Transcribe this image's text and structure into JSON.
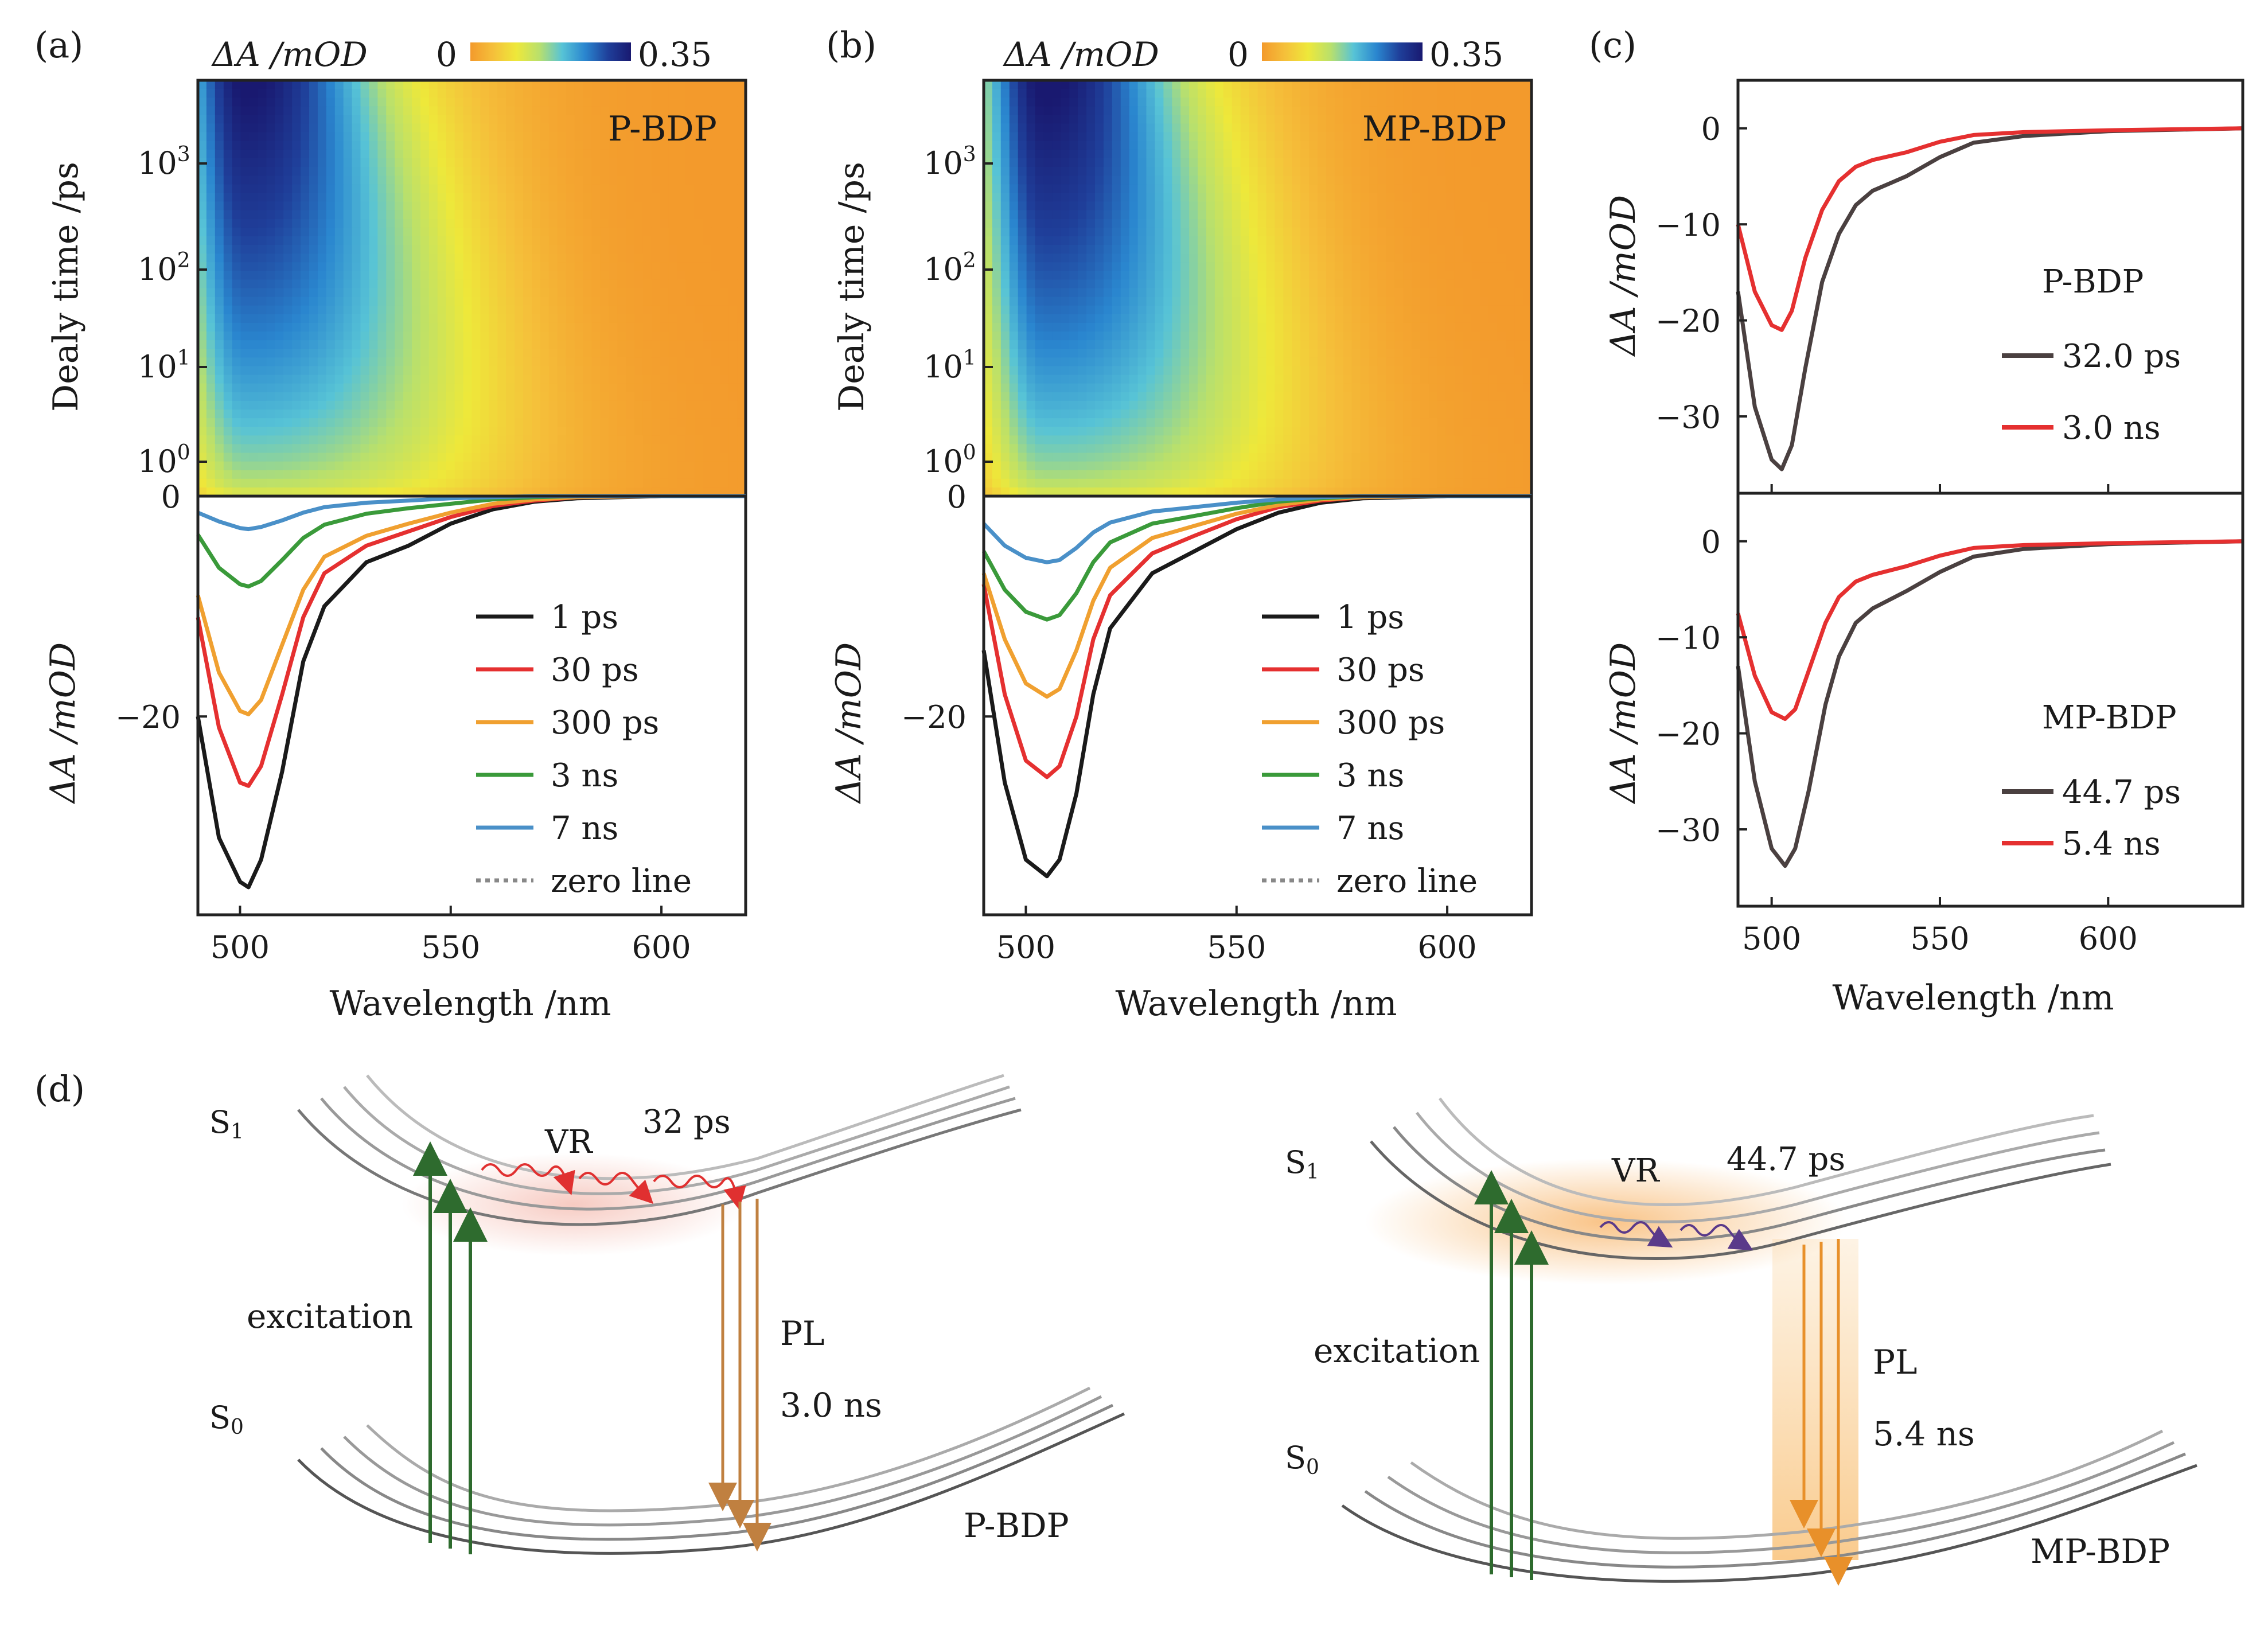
{
  "panels": {
    "a": "(a)",
    "b": "(b)",
    "c": "(c)",
    "d": "(d)"
  },
  "colorbar": {
    "label": "ΔA /mOD",
    "min": "0",
    "max": "0.35",
    "stops": [
      "#f39a2c",
      "#f5c03a",
      "#eee83a",
      "#b9e06c",
      "#57c3d6",
      "#2a86cf",
      "#1f3f9a",
      "#191970"
    ]
  },
  "maps": {
    "a": {
      "label": "P-BDP",
      "peak": 501,
      "width_nm": 14,
      "yticks": [
        "10",
        "10",
        "10",
        "10"
      ],
      "yexps": [
        "0",
        "1",
        "2",
        "3"
      ],
      "ylabel": "Dealy time /ps"
    },
    "b": {
      "label": "MP-BDP",
      "peak": 504,
      "width_nm": 14,
      "yticks": [
        "10",
        "10",
        "10",
        "10"
      ],
      "yexps": [
        "0",
        "1",
        "2",
        "3"
      ],
      "ylabel": "Dealy time /ps"
    }
  },
  "axes": {
    "xlabel": "Wavelength /nm",
    "ylabel_spectra": "ΔA /mOD",
    "xticks_ab": [
      "500",
      "550",
      "600"
    ],
    "yticks_ab": [
      "0",
      "−20"
    ],
    "xticks_c": [
      "500",
      "550",
      "600"
    ],
    "yticks_c": [
      "0",
      "−10",
      "−20",
      "−30"
    ]
  },
  "legend_ab": [
    "1 ps",
    "30 ps",
    "300 ps",
    "3 ns",
    "7 ns",
    "zero line"
  ],
  "legend_c_top": {
    "title": "P-BDP",
    "items": [
      "32.0 ps",
      "3.0 ns"
    ]
  },
  "legend_c_bottom": {
    "title": "MP-BDP",
    "items": [
      "44.7 ps",
      "5.4 ns"
    ]
  },
  "chart_data": [
    {
      "type": "line",
      "panel": "a",
      "xlabel": "Wavelength /nm",
      "ylabel": "ΔA /mOD",
      "xlim": [
        490,
        620
      ],
      "ylim": [
        -38,
        0
      ],
      "x": [
        490,
        495,
        500,
        502,
        505,
        510,
        515,
        520,
        530,
        540,
        550,
        560,
        570,
        580,
        600,
        620
      ],
      "series": [
        {
          "name": "1 ps",
          "color": "#1a1a1a",
          "values": [
            -20,
            -31,
            -35,
            -35.5,
            -33,
            -25,
            -15,
            -10,
            -6,
            -4.5,
            -2.5,
            -1.2,
            -0.5,
            -0.2,
            0,
            0
          ]
        },
        {
          "name": "30 ps",
          "color": "#e53030",
          "values": [
            -11,
            -21,
            -26,
            -26.3,
            -24.5,
            -18,
            -11,
            -7,
            -4.5,
            -3.2,
            -1.9,
            -0.9,
            -0.4,
            -0.1,
            0,
            0
          ]
        },
        {
          "name": "300 ps",
          "color": "#f0a030",
          "values": [
            -9,
            -16,
            -19.5,
            -19.8,
            -18.5,
            -13.5,
            -8.5,
            -5.5,
            -3.6,
            -2.5,
            -1.5,
            -0.7,
            -0.3,
            -0.1,
            0,
            0
          ]
        },
        {
          "name": "3 ns",
          "color": "#3a9a3a",
          "values": [
            -3.5,
            -6.5,
            -8,
            -8.2,
            -7.7,
            -5.8,
            -3.8,
            -2.6,
            -1.6,
            -1.1,
            -0.7,
            -0.3,
            -0.1,
            0,
            0,
            0
          ]
        },
        {
          "name": "7 ns",
          "color": "#4a90c8",
          "values": [
            -1.5,
            -2.3,
            -2.9,
            -3,
            -2.8,
            -2.2,
            -1.5,
            -1,
            -0.6,
            -0.4,
            -0.2,
            -0.1,
            0,
            0,
            0,
            0
          ]
        }
      ]
    },
    {
      "type": "line",
      "panel": "b",
      "xlabel": "Wavelength /nm",
      "ylabel": "ΔA /mOD",
      "xlim": [
        490,
        620
      ],
      "ylim": [
        -38,
        0
      ],
      "x": [
        490,
        495,
        500,
        505,
        508,
        512,
        516,
        520,
        530,
        540,
        550,
        560,
        570,
        580,
        600,
        620
      ],
      "series": [
        {
          "name": "1 ps",
          "color": "#1a1a1a",
          "values": [
            -14,
            -26,
            -33,
            -34.5,
            -33,
            -27,
            -18,
            -12,
            -7,
            -5,
            -3,
            -1.5,
            -0.6,
            -0.2,
            0,
            0
          ]
        },
        {
          "name": "30 ps",
          "color": "#e53030",
          "values": [
            -8,
            -18,
            -24,
            -25.5,
            -24.5,
            -20,
            -13,
            -9,
            -5.2,
            -3.6,
            -2.1,
            -1,
            -0.4,
            -0.1,
            0,
            0
          ]
        },
        {
          "name": "300 ps",
          "color": "#f0a030",
          "values": [
            -7,
            -13,
            -17,
            -18.2,
            -17.5,
            -14,
            -9.5,
            -6.5,
            -3.8,
            -2.7,
            -1.6,
            -0.8,
            -0.3,
            -0.1,
            0,
            0
          ]
        },
        {
          "name": "3 ns",
          "color": "#3a9a3a",
          "values": [
            -5,
            -8.5,
            -10.5,
            -11.2,
            -10.8,
            -8.8,
            -6,
            -4.2,
            -2.5,
            -1.8,
            -1.1,
            -0.5,
            -0.2,
            0,
            0,
            0
          ]
        },
        {
          "name": "7 ns",
          "color": "#4a90c8",
          "values": [
            -2.5,
            -4.5,
            -5.6,
            -6,
            -5.8,
            -4.7,
            -3.3,
            -2.4,
            -1.4,
            -1,
            -0.6,
            -0.3,
            -0.1,
            0,
            0,
            0
          ]
        }
      ]
    },
    {
      "type": "line",
      "panel": "c-top",
      "xlabel": "",
      "ylabel": "ΔA /mOD",
      "xlim": [
        490,
        640
      ],
      "ylim": [
        -38,
        5
      ],
      "x": [
        490,
        495,
        500,
        503,
        506,
        510,
        515,
        520,
        525,
        530,
        540,
        550,
        560,
        575,
        600,
        640
      ],
      "series": [
        {
          "name": "32.0 ps",
          "color": "#4a4040",
          "values": [
            -17,
            -29,
            -34.5,
            -35.5,
            -33,
            -25,
            -16,
            -11,
            -8,
            -6.5,
            -5,
            -3,
            -1.5,
            -0.8,
            -0.3,
            0
          ]
        },
        {
          "name": "3.0 ns",
          "color": "#e53030",
          "values": [
            -10,
            -17,
            -20.5,
            -21,
            -19,
            -13.5,
            -8.5,
            -5.5,
            -4,
            -3.3,
            -2.5,
            -1.4,
            -0.7,
            -0.4,
            -0.2,
            0
          ]
        }
      ]
    },
    {
      "type": "line",
      "panel": "c-bottom",
      "xlabel": "Wavelength /nm",
      "ylabel": "ΔA /mOD",
      "xlim": [
        490,
        640
      ],
      "ylim": [
        -38,
        5
      ],
      "x": [
        490,
        495,
        500,
        504,
        507,
        511,
        516,
        520,
        525,
        530,
        540,
        550,
        560,
        575,
        600,
        640
      ],
      "series": [
        {
          "name": "44.7 ps",
          "color": "#4a4040",
          "values": [
            -13,
            -25,
            -32,
            -33.8,
            -32,
            -26,
            -17,
            -12,
            -8.5,
            -7,
            -5.2,
            -3.2,
            -1.6,
            -0.8,
            -0.3,
            0
          ]
        },
        {
          "name": "5.4 ns",
          "color": "#e53030",
          "values": [
            -7.5,
            -14,
            -17.8,
            -18.5,
            -17.5,
            -13.5,
            -8.5,
            -5.8,
            -4.2,
            -3.5,
            -2.6,
            -1.5,
            -0.7,
            -0.4,
            -0.2,
            0
          ]
        }
      ]
    }
  ],
  "diagrams": {
    "left": {
      "s1": "S",
      "s1_sub": "1",
      "s0": "S",
      "s0_sub": "0",
      "vr": "VR",
      "vr_time": "32 ps",
      "excitation": "excitation",
      "pl": "PL",
      "pl_time": "3.0 ns",
      "molecule": "P-BDP"
    },
    "right": {
      "s1": "S",
      "s1_sub": "1",
      "s0": "S",
      "s0_sub": "0",
      "vr": "VR",
      "vr_time": "44.7 ps",
      "excitation": "excitation",
      "pl": "PL",
      "pl_time": "5.4 ns",
      "molecule": "MP-BDP"
    }
  }
}
